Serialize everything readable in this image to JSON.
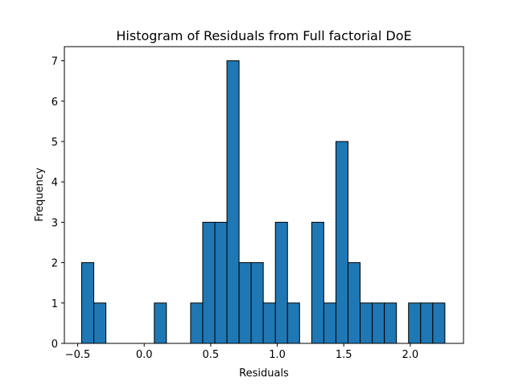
{
  "chart_data": {
    "type": "bar",
    "title": "Histogram of Residuals from Full factorial DoE",
    "xlabel": "Residuals",
    "ylabel": "Frequency",
    "xlim": [
      -0.6,
      2.4
    ],
    "ylim": [
      0,
      7.35
    ],
    "bar_color": "#1f77b4",
    "edge_color": "#000000",
    "grid": false,
    "bins": {
      "edges": [
        -0.47,
        -0.379,
        -0.288,
        -0.197,
        -0.106,
        -0.015,
        0.076,
        0.167,
        0.258,
        0.349,
        0.44,
        0.531,
        0.622,
        0.713,
        0.804,
        0.895,
        0.986,
        1.077,
        1.168,
        1.259,
        1.35,
        1.441,
        1.532,
        1.623,
        1.714,
        1.805,
        1.896,
        1.987,
        2.078,
        2.169,
        2.26
      ],
      "counts": [
        2,
        1,
        0,
        0,
        0,
        0,
        1,
        0,
        0,
        1,
        3,
        3,
        7,
        2,
        2,
        1,
        3,
        1,
        0,
        3,
        1,
        5,
        2,
        1,
        1,
        1,
        0,
        1,
        1,
        1
      ]
    },
    "xticks": [
      {
        "value": -0.5,
        "label": "−0.5"
      },
      {
        "value": 0.0,
        "label": "0.0"
      },
      {
        "value": 0.5,
        "label": "0.5"
      },
      {
        "value": 1.0,
        "label": "1.0"
      },
      {
        "value": 1.5,
        "label": "1.5"
      },
      {
        "value": 2.0,
        "label": "2.0"
      }
    ],
    "yticks": [
      {
        "value": 0,
        "label": "0"
      },
      {
        "value": 1,
        "label": "1"
      },
      {
        "value": 2,
        "label": "2"
      },
      {
        "value": 3,
        "label": "3"
      },
      {
        "value": 4,
        "label": "4"
      },
      {
        "value": 5,
        "label": "5"
      },
      {
        "value": 6,
        "label": "6"
      },
      {
        "value": 7,
        "label": "7"
      }
    ]
  }
}
